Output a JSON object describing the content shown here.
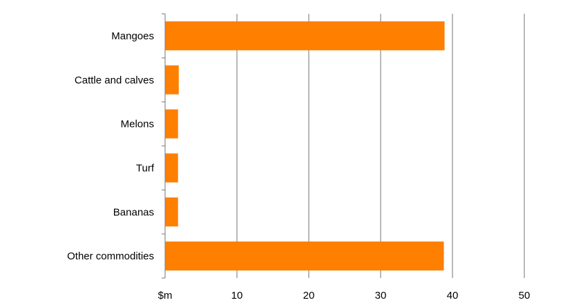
{
  "chart_data": {
    "type": "bar",
    "orientation": "horizontal",
    "categories": [
      "Mangoes",
      "Cattle and calves",
      "Melons",
      "Turf",
      "Bananas",
      "Other commodities"
    ],
    "values": [
      38.9,
      1.9,
      1.8,
      1.8,
      1.8,
      38.8
    ],
    "xlim": [
      0,
      50
    ],
    "x_ticks": [
      0,
      10,
      20,
      30,
      40,
      50
    ],
    "x_tick_labels": [
      "$m",
      "10",
      "20",
      "30",
      "40",
      "50"
    ],
    "bar_color": "#FF7F00",
    "grid": "vertical",
    "legend": "none"
  }
}
